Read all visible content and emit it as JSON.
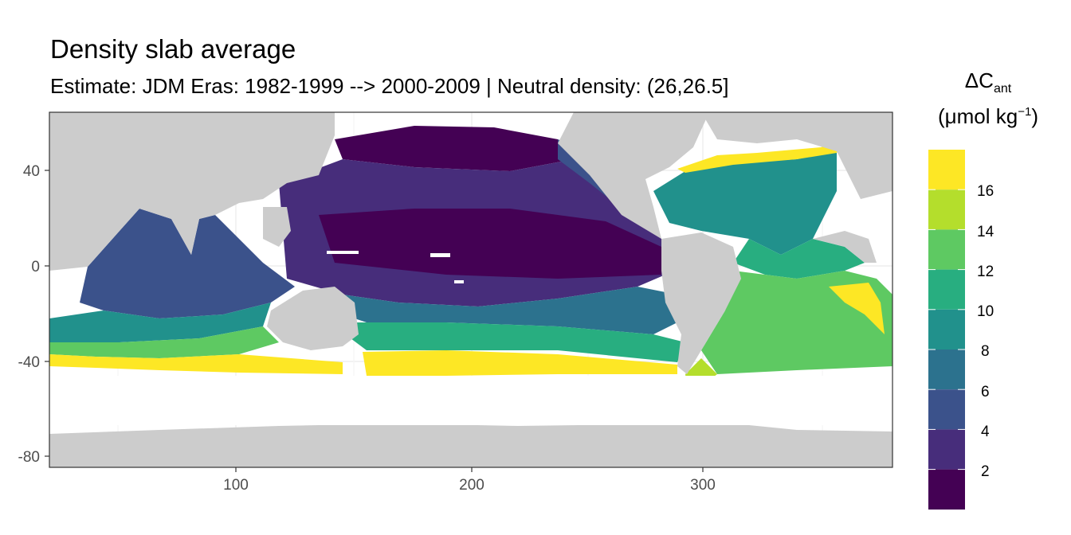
{
  "title": "Density slab average",
  "subtitle": "Estimate: JDM Eras: 1982-1999 --> 2000-2009 | Neutral density: (26,26.5]",
  "legend": {
    "title_symbol": "ΔC",
    "title_subscript": "ant",
    "unit_prefix": "(μmol kg",
    "unit_superscript": "−1",
    "unit_suffix": ")",
    "labels": [
      "16",
      "14",
      "12",
      "10",
      "8",
      "6",
      "4",
      "2"
    ],
    "colors_top_to_bottom": [
      "#FDE725",
      "#B4DE2C",
      "#5EC962",
      "#28AE80",
      "#21918C",
      "#2C728E",
      "#3B528B",
      "#472D7B",
      "#440154"
    ]
  },
  "axes": {
    "x_ticks": [
      "100",
      "200",
      "300"
    ],
    "y_ticks": [
      "40",
      "0",
      "-40",
      "-80"
    ]
  },
  "map": {
    "land_color": "#CCCCCC",
    "background_color": "#FFFFFF",
    "regions": [
      {
        "name": "north-pacific-subpolar",
        "color": "#440154"
      },
      {
        "name": "equatorial-pacific",
        "color": "#440154"
      },
      {
        "name": "subtropical-pacific",
        "color": "#472D7B"
      },
      {
        "name": "north-pacific-transition",
        "color": "#3B528B"
      },
      {
        "name": "south-pacific-subtropical",
        "color": "#2C728E"
      },
      {
        "name": "south-pacific-subantarctic",
        "color": "#28AE80"
      },
      {
        "name": "southern-ocean-pacific-front",
        "color": "#FDE725"
      },
      {
        "name": "indian-ocean-interior",
        "color": "#3B528B"
      },
      {
        "name": "indian-ocean-south",
        "color": "#21918C"
      },
      {
        "name": "indian-ocean-subantarctic",
        "color": "#5EC962"
      },
      {
        "name": "indian-ocean-front",
        "color": "#FDE725"
      },
      {
        "name": "north-atlantic",
        "color": "#21918C"
      },
      {
        "name": "north-atlantic-north-edge",
        "color": "#FDE725"
      },
      {
        "name": "tropical-atlantic",
        "color": "#28AE80"
      },
      {
        "name": "south-atlantic",
        "color": "#5EC962"
      },
      {
        "name": "south-atlantic-front",
        "color": "#FDE725"
      },
      {
        "name": "southern-ocean-atlantic",
        "color": "#B4DE2C"
      }
    ]
  }
}
